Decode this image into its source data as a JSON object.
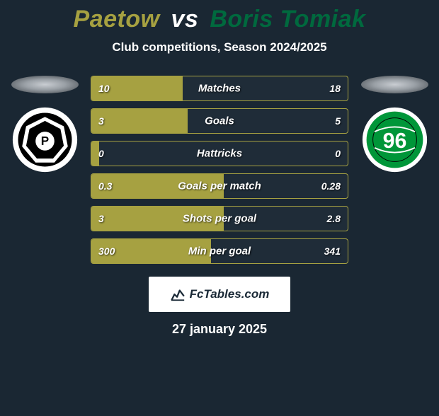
{
  "title": {
    "player1": "Paetow",
    "vs": "vs",
    "player2": "Boris Tomiak",
    "player1_color": "#a6a141",
    "player2_color": "#00693e"
  },
  "subtitle": "Club competitions, Season 2024/2025",
  "stats": [
    {
      "label": "Matches",
      "v1": "10",
      "v2": "18",
      "fill_pct": 35.7
    },
    {
      "label": "Goals",
      "v1": "3",
      "v2": "5",
      "fill_pct": 37.5
    },
    {
      "label": "Hattricks",
      "v1": "0",
      "v2": "0",
      "fill_pct": 3.0
    },
    {
      "label": "Goals per match",
      "v1": "0.3",
      "v2": "0.28",
      "fill_pct": 51.7
    },
    {
      "label": "Shots per goal",
      "v1": "3",
      "v2": "2.8",
      "fill_pct": 51.7
    },
    {
      "label": "Min per goal",
      "v1": "300",
      "v2": "341",
      "fill_pct": 46.8
    }
  ],
  "colors": {
    "bar_fill": "#a6a141",
    "bar_border": "#a6a141",
    "bar_bg": "#1f2c38",
    "page_bg": "#1a2733"
  },
  "branding": {
    "text": "FcTables.com"
  },
  "date": "27 january 2025",
  "crests": {
    "left": {
      "bg": "#ffffff",
      "inner": "#000000",
      "letter": "P"
    },
    "right": {
      "bg": "#ffffff",
      "inner": "#009639",
      "text": "96"
    }
  }
}
